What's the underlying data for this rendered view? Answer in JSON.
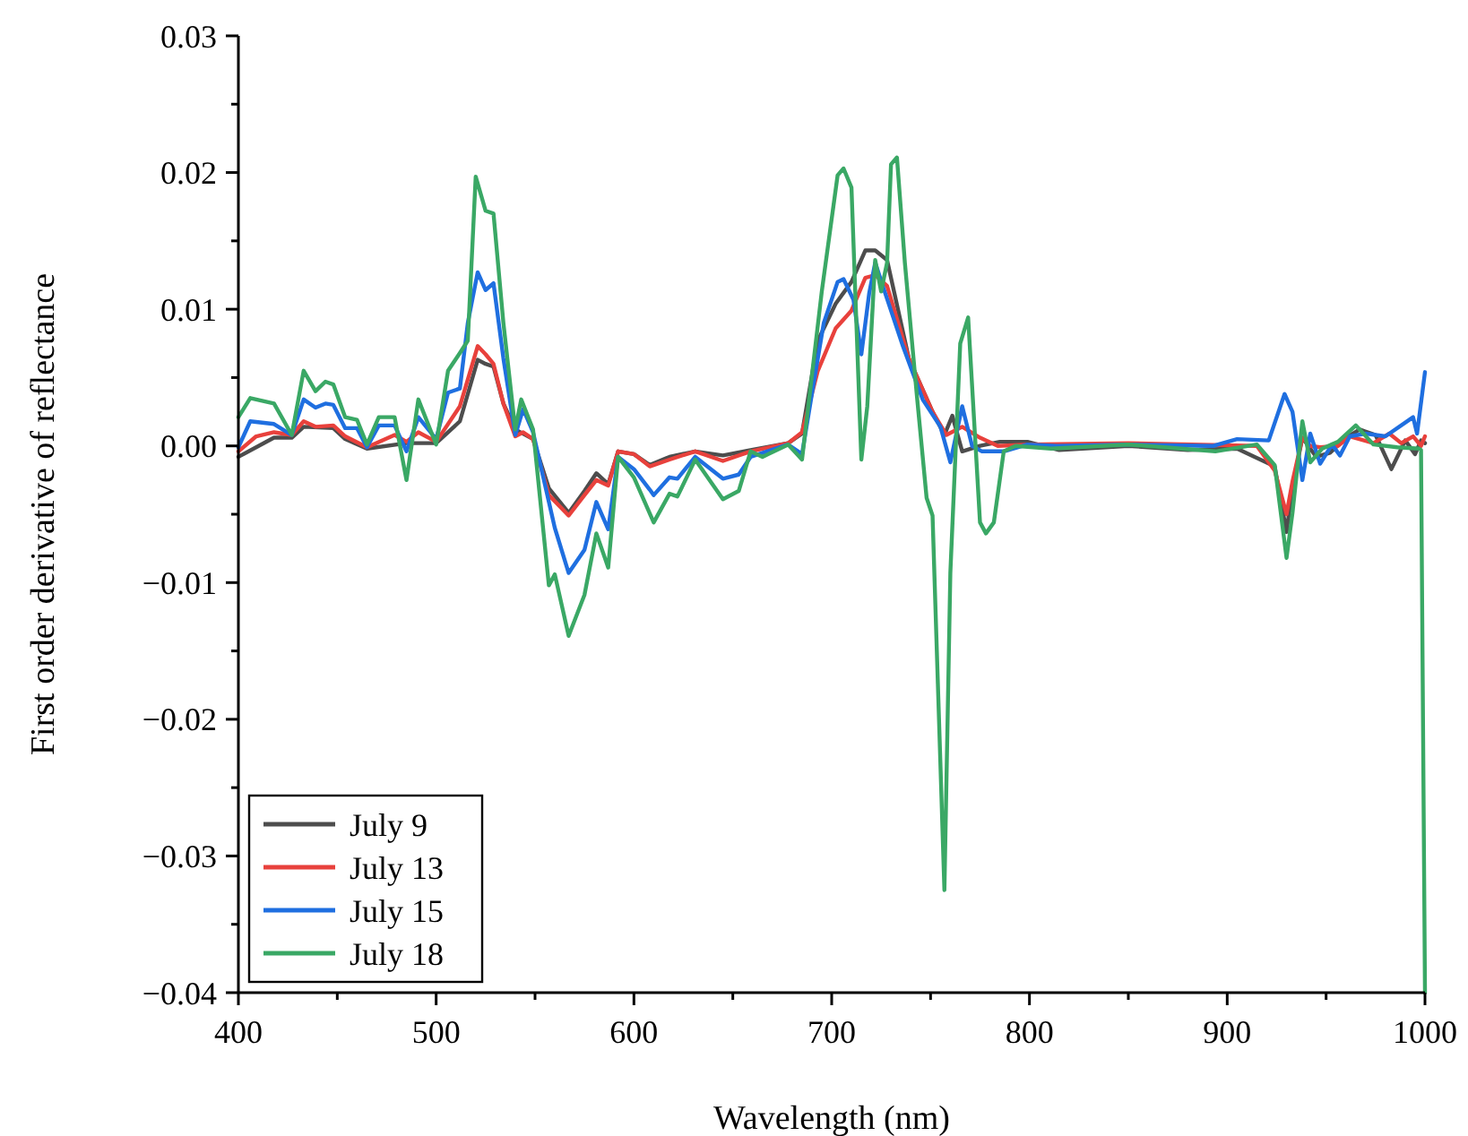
{
  "chart_data": {
    "type": "line",
    "xlabel": "Wavelength (nm)",
    "ylabel": "First order derivative of reflectance",
    "xlim": [
      400,
      1000
    ],
    "ylim": [
      -0.04,
      0.03
    ],
    "xticks": [
      400,
      {
        "value": 450,
        "label": null
      },
      500,
      {
        "value": 550,
        "label": null
      },
      600,
      {
        "value": 650,
        "label": null
      },
      700,
      {
        "value": 750,
        "label": null
      },
      800,
      {
        "value": 850,
        "label": null
      },
      900,
      {
        "value": 950,
        "label": null
      },
      1000
    ],
    "yticks": [
      {
        "value": -0.04,
        "label": "−0.04"
      },
      {
        "value": -0.035,
        "label": null
      },
      {
        "value": -0.03,
        "label": "−0.03"
      },
      {
        "value": -0.025,
        "label": null
      },
      {
        "value": -0.02,
        "label": "−0.02"
      },
      {
        "value": -0.015,
        "label": null
      },
      {
        "value": -0.01,
        "label": "−0.01"
      },
      {
        "value": -0.005,
        "label": null
      },
      {
        "value": 0,
        "label": "0.00"
      },
      {
        "value": 0.005,
        "label": null
      },
      {
        "value": 0.01,
        "label": "0.01"
      },
      {
        "value": 0.015,
        "label": null
      },
      {
        "value": 0.02,
        "label": "0.02"
      },
      {
        "value": 0.025,
        "label": null
      },
      {
        "value": 0.03,
        "label": "0.03"
      }
    ],
    "grid": false,
    "legend": "bottom left",
    "marker": "none",
    "line_style": "solid",
    "series": [
      {
        "name": "July 9",
        "color": "#4d4d4d",
        "x": [
          400,
          418,
          427,
          433,
          448,
          454,
          465,
          485,
          500,
          512,
          521,
          525,
          529,
          534,
          540,
          549,
          557,
          567,
          575,
          581,
          587,
          592,
          600,
          608,
          618,
          631,
          645,
          659,
          678,
          685,
          693,
          702,
          710,
          717,
          722,
          728,
          739,
          751,
          757,
          761,
          766,
          775,
          785,
          799,
          815,
          850,
          880,
          905,
          924,
          930,
          933,
          938,
          945,
          952,
          960,
          967,
          975,
          983,
          990,
          995,
          998,
          1000
        ],
        "values": [
          -0.0008,
          0.0006,
          0.0006,
          0.0014,
          0.0013,
          0.0005,
          -0.0002,
          0.0002,
          0.0002,
          0.0018,
          0.0063,
          0.006,
          0.0058,
          0.0031,
          0.0012,
          0.0005,
          -0.0031,
          -0.0049,
          -0.0033,
          -0.002,
          -0.0028,
          -0.0004,
          -0.0006,
          -0.0014,
          -0.0008,
          -0.0004,
          -0.0007,
          -0.0003,
          0.0002,
          0.0009,
          0.0077,
          0.0104,
          0.012,
          0.0143,
          0.0143,
          0.0136,
          0.0064,
          0.0025,
          0.0008,
          0.0022,
          -0.0004,
          0,
          0.0003,
          0.0003,
          -0.0003,
          0,
          -0.0003,
          -0.0002,
          -0.0015,
          -0.0063,
          -0.003,
          0.0006,
          -0.0008,
          -0.0005,
          0.0006,
          0.0012,
          0.0008,
          -0.0017,
          0.0004,
          -0.0006,
          0.0004,
          0.0002
        ]
      },
      {
        "name": "July 13",
        "color": "#e8413c",
        "x": [
          400,
          409,
          418,
          427,
          433,
          439,
          448,
          454,
          465,
          479,
          485,
          491,
          500,
          512,
          521,
          525,
          529,
          534,
          540,
          544,
          549,
          557,
          567,
          575,
          581,
          587,
          592,
          600,
          608,
          618,
          631,
          645,
          659,
          678,
          685,
          693,
          702,
          710,
          717,
          722,
          728,
          739,
          751,
          758,
          766,
          775,
          784,
          799,
          850,
          915,
          924,
          930,
          933,
          938,
          942,
          947,
          956,
          962,
          974,
          982,
          988,
          994,
          998,
          1000
        ],
        "values": [
          -0.0004,
          0.0007,
          0.001,
          0.0008,
          0.0018,
          0.0014,
          0.0015,
          0.0007,
          -0.0001,
          0.0008,
          0.0003,
          0.001,
          0.0003,
          0.0029,
          0.0073,
          0.0067,
          0.006,
          0.0031,
          0.0007,
          0.001,
          0.0005,
          -0.0036,
          -0.0051,
          -0.0036,
          -0.0025,
          -0.0029,
          -0.0004,
          -0.0006,
          -0.0015,
          -0.001,
          -0.0004,
          -0.0011,
          -0.0004,
          0.0002,
          0.001,
          0.0055,
          0.0086,
          0.0099,
          0.0123,
          0.0125,
          0.0117,
          0.0064,
          0.0025,
          0.0008,
          0.0014,
          0.0006,
          0,
          0.0001,
          0.0002,
          0,
          -0.0018,
          -0.005,
          -0.0026,
          0.0006,
          0,
          -0.0001,
          0,
          0.0007,
          0.0002,
          0.0009,
          0.0002,
          0.0007,
          0,
          0.0007
        ]
      },
      {
        "name": "July 15",
        "color": "#1f6fe0",
        "x": [
          400,
          406,
          418,
          427,
          433,
          439,
          444,
          448,
          454,
          460,
          465,
          471,
          479,
          485,
          491,
          500,
          506,
          512,
          516,
          521,
          525,
          529,
          534,
          540,
          544,
          549,
          557,
          560,
          567,
          575,
          581,
          587,
          592,
          600,
          608,
          610,
          618,
          622,
          631,
          645,
          653,
          659,
          678,
          685,
          690,
          696,
          703,
          706,
          711,
          715,
          719,
          722,
          727,
          736,
          746,
          755,
          760,
          766,
          771,
          776,
          787,
          799,
          814,
          850,
          893,
          905,
          921,
          929,
          933,
          938,
          942,
          947,
          953,
          957,
          962,
          970,
          980,
          994,
          996,
          1000
        ],
        "values": [
          -0.0001,
          0.0018,
          0.0016,
          0.0008,
          0.0034,
          0.0028,
          0.0031,
          0.003,
          0.0013,
          0.0013,
          -0.0001,
          0.0015,
          0.0015,
          -0.0004,
          0.0021,
          0.0005,
          0.0039,
          0.0042,
          0.009,
          0.0127,
          0.0114,
          0.0119,
          0.0064,
          0.0008,
          0.0027,
          0.001,
          -0.0041,
          -0.006,
          -0.0093,
          -0.0076,
          -0.0041,
          -0.0061,
          -0.0008,
          -0.0017,
          -0.0032,
          -0.0036,
          -0.0023,
          -0.0024,
          -0.0008,
          -0.0024,
          -0.0021,
          -0.0008,
          0.0001,
          -0.0006,
          0.0038,
          0.009,
          0.012,
          0.0122,
          0.0107,
          0.0067,
          0.0112,
          0.0134,
          0.0112,
          0.0073,
          0.0034,
          0.0014,
          -0.0012,
          0.0029,
          0,
          -0.0004,
          -0.0004,
          0.0001,
          0,
          0.0001,
          0,
          0.0005,
          0.0004,
          0.0038,
          0.0025,
          -0.0025,
          0.0009,
          -0.0013,
          0.0001,
          -0.0007,
          0.0007,
          0.0009,
          0.0007,
          0.0021,
          0.0009,
          0.0054
        ]
      },
      {
        "name": "July 18",
        "color": "#3aa865",
        "x": [
          400,
          406,
          418,
          427,
          433,
          439,
          444,
          448,
          454,
          460,
          465,
          471,
          479,
          485,
          491,
          500,
          506,
          512,
          516,
          520,
          525,
          529,
          534,
          540,
          543,
          549,
          557,
          560,
          567,
          575,
          581,
          587,
          592,
          600,
          610,
          618,
          622,
          631,
          645,
          653,
          659,
          665,
          678,
          685,
          695,
          703,
          706,
          710,
          715,
          718,
          722,
          725,
          728,
          730,
          733,
          737,
          743,
          748,
          751,
          757,
          760,
          765,
          769,
          775,
          778,
          782,
          787,
          793,
          811,
          850,
          894,
          915,
          924,
          930,
          933,
          938,
          942,
          948,
          956,
          965,
          974,
          986,
          997,
          998,
          1000
        ],
        "values": [
          0.0021,
          0.0035,
          0.0031,
          0.0008,
          0.0055,
          0.004,
          0.0047,
          0.0045,
          0.0021,
          0.0019,
          0.0001,
          0.0021,
          0.0021,
          -0.0025,
          0.0034,
          0.0001,
          0.0055,
          0.0068,
          0.0077,
          0.0197,
          0.0172,
          0.017,
          0.009,
          0.0012,
          0.0034,
          0.0012,
          -0.0102,
          -0.0094,
          -0.0139,
          -0.0109,
          -0.0064,
          -0.0089,
          -0.0008,
          -0.0023,
          -0.0056,
          -0.0035,
          -0.0037,
          -0.001,
          -0.0039,
          -0.0033,
          -0.0004,
          -0.0008,
          0.0001,
          -0.001,
          0.0113,
          0.0198,
          0.0203,
          0.0189,
          -0.001,
          0.0029,
          0.0136,
          0.0113,
          0.0134,
          0.0206,
          0.0211,
          0.0134,
          0.0038,
          -0.0038,
          -0.0051,
          -0.0325,
          -0.0093,
          0.0075,
          0.0094,
          -0.0056,
          -0.0064,
          -0.0056,
          -0.0004,
          0,
          -0.0002,
          0.0001,
          -0.0004,
          0.0001,
          -0.0014,
          -0.0082,
          -0.0049,
          0.0018,
          -0.0012,
          -0.0002,
          0.0003,
          0.0015,
          0.0001,
          -0.0001,
          -0.0002,
          -0.0003,
          -0.04
        ]
      }
    ]
  }
}
